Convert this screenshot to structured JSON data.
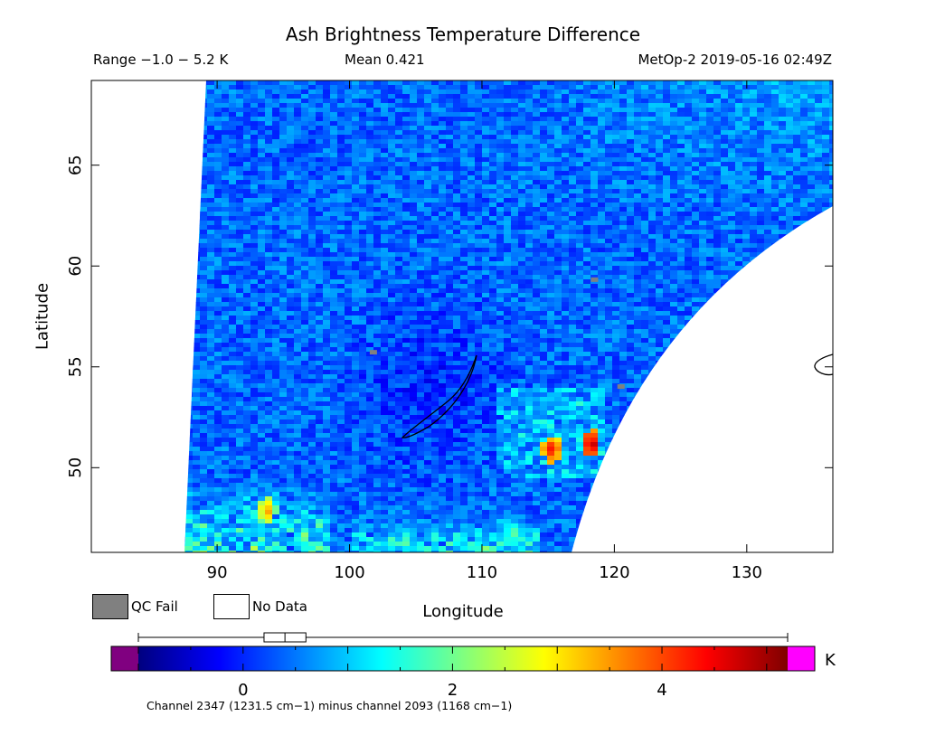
{
  "chart_data": {
    "type": "heatmap",
    "title": "Ash Brightness Temperature Difference",
    "stats": {
      "range": "Range −1.0 − 5.2 K",
      "mean": "Mean 0.421",
      "satellite": "MetOp-2 2019-05-16 02:49Z"
    },
    "xlabel": "Longitude",
    "ylabel": "Latitude",
    "xlim": [
      80.5,
      136.5
    ],
    "ylim": [
      45.8,
      69.2
    ],
    "x_ticks": [
      90,
      100,
      110,
      120,
      130
    ],
    "y_ticks": [
      50,
      55,
      60,
      65
    ],
    "legend": {
      "qc_fail": "QC Fail",
      "no_data": "No Data"
    },
    "colorbar": {
      "unit": "K",
      "min": -1.0,
      "max": 5.2,
      "ticks": [
        0,
        2,
        4
      ],
      "footnote": "Channel 2347 (1231.5 cm−1) minus channel 2093 (1168 cm−1)",
      "boxplot": {
        "min": -1.0,
        "q1": 0.2,
        "median": 0.4,
        "q3": 0.6,
        "max": 5.2
      }
    },
    "hotspots": [
      {
        "lon": 93.5,
        "lat": 48.0,
        "value": 3.5
      },
      {
        "lon": 115.0,
        "lat": 51.0,
        "value": 4.5
      },
      {
        "lon": 118.0,
        "lat": 51.3,
        "value": 5.0
      },
      {
        "lon": 104.0,
        "lat": 46.5,
        "value": 2.0
      },
      {
        "lon": 112.0,
        "lat": 46.8,
        "value": 2.2
      }
    ],
    "qc_fail_points": [
      {
        "lon": 118.5,
        "lat": 59.3
      },
      {
        "lon": 120.5,
        "lat": 54.0
      },
      {
        "lon": 101.8,
        "lat": 55.7
      }
    ]
  },
  "colors": {
    "qc_fail": "#808080",
    "below_range": "#800080",
    "above_range": "#ff00ff"
  }
}
